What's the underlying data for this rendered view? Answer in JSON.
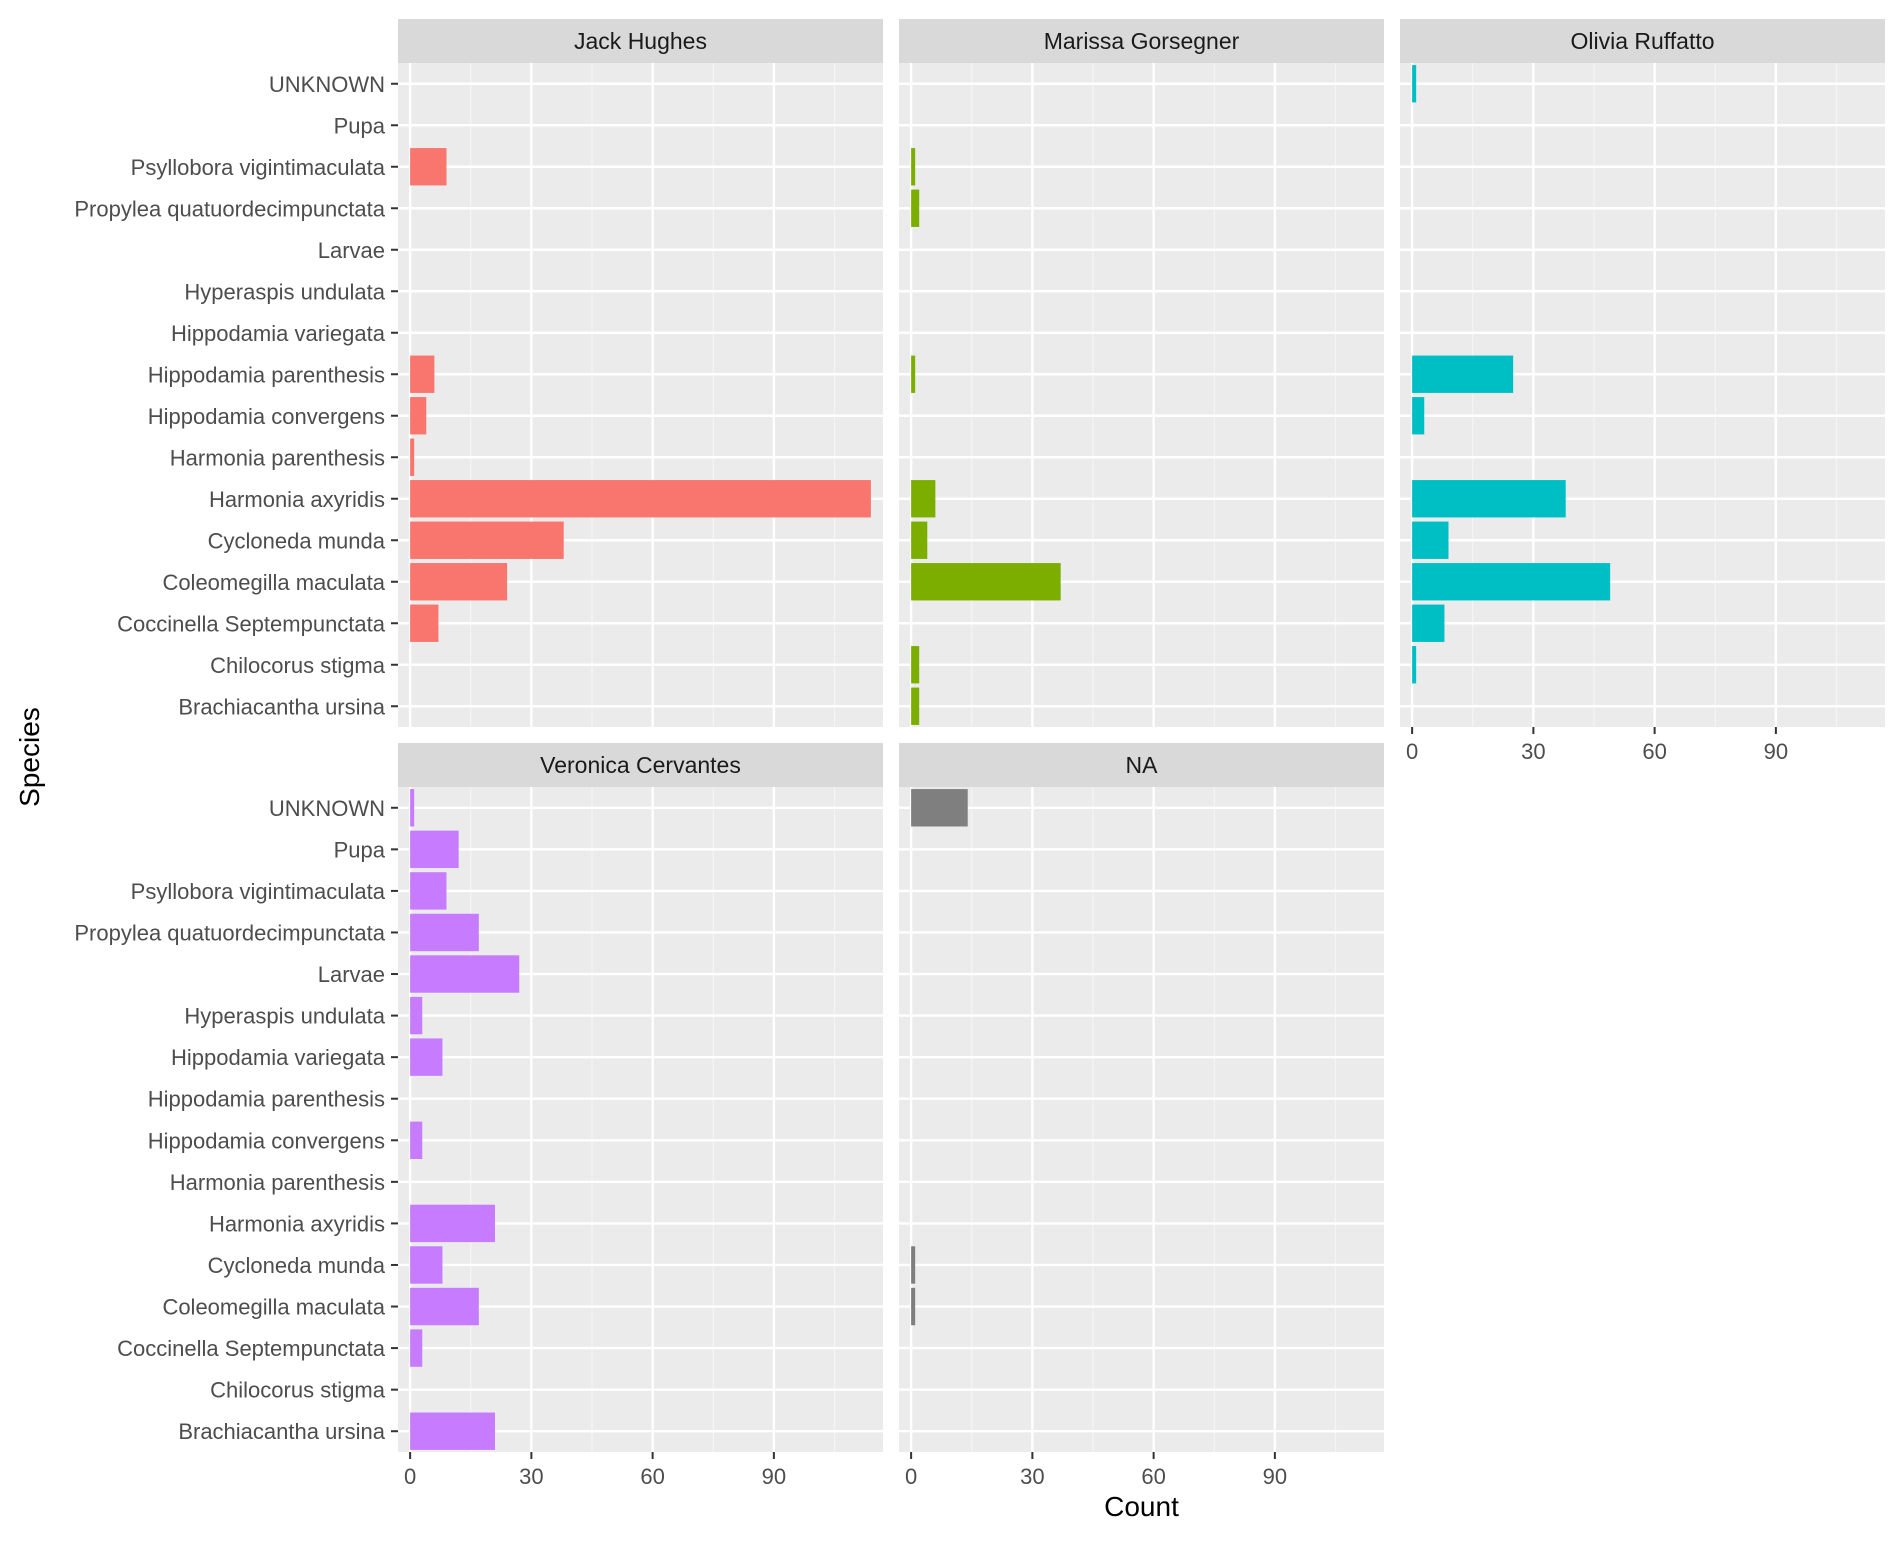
{
  "chart_data": {
    "type": "bar",
    "orientation": "horizontal",
    "facet_layout": "3 columns, 2 rows",
    "xlabel": "Count",
    "ylabel": "Species",
    "xlim": [
      -3,
      117
    ],
    "x_ticks": [
      0,
      30,
      60,
      90
    ],
    "grid": true,
    "legend": "none",
    "categories": [
      "Brachiacantha ursina",
      "Chilocorus stigma",
      "Coccinella Septempunctata",
      "Coleomegilla maculata",
      "Cycloneda munda",
      "Harmonia axyridis",
      "Harmonia parenthesis",
      "Hippodamia convergens",
      "Hippodamia parenthesis",
      "Hippodamia variegata",
      "Hyperaspis undulata",
      "Larvae",
      "Propylea quatuordecimpunctata",
      "Psyllobora vigintimaculata",
      "Pupa",
      "UNKNOWN"
    ],
    "panels": [
      {
        "name": "Jack Hughes",
        "color": "#F8766D",
        "values": [
          0,
          0,
          7,
          24,
          38,
          114,
          1,
          4,
          6,
          0,
          0,
          0,
          0,
          9,
          0,
          0
        ]
      },
      {
        "name": "Marissa Gorsegner",
        "color": "#7CAE00",
        "values": [
          2,
          2,
          0,
          37,
          4,
          6,
          0,
          0,
          1,
          0,
          0,
          0,
          2,
          1,
          0,
          0
        ]
      },
      {
        "name": "Olivia Ruffatto",
        "color": "#00BFC4",
        "values": [
          0,
          1,
          8,
          49,
          9,
          38,
          0,
          3,
          25,
          0,
          0,
          0,
          0,
          0,
          0,
          1
        ]
      },
      {
        "name": "Veronica Cervantes",
        "color": "#C77CFF",
        "values": [
          21,
          0,
          3,
          17,
          8,
          21,
          0,
          3,
          0,
          8,
          3,
          27,
          17,
          9,
          12,
          1
        ]
      },
      {
        "name": "NA",
        "color": "#7F7F7F",
        "values": [
          0,
          0,
          0,
          1,
          1,
          0,
          0,
          0,
          0,
          0,
          0,
          0,
          0,
          0,
          0,
          14
        ]
      }
    ]
  }
}
